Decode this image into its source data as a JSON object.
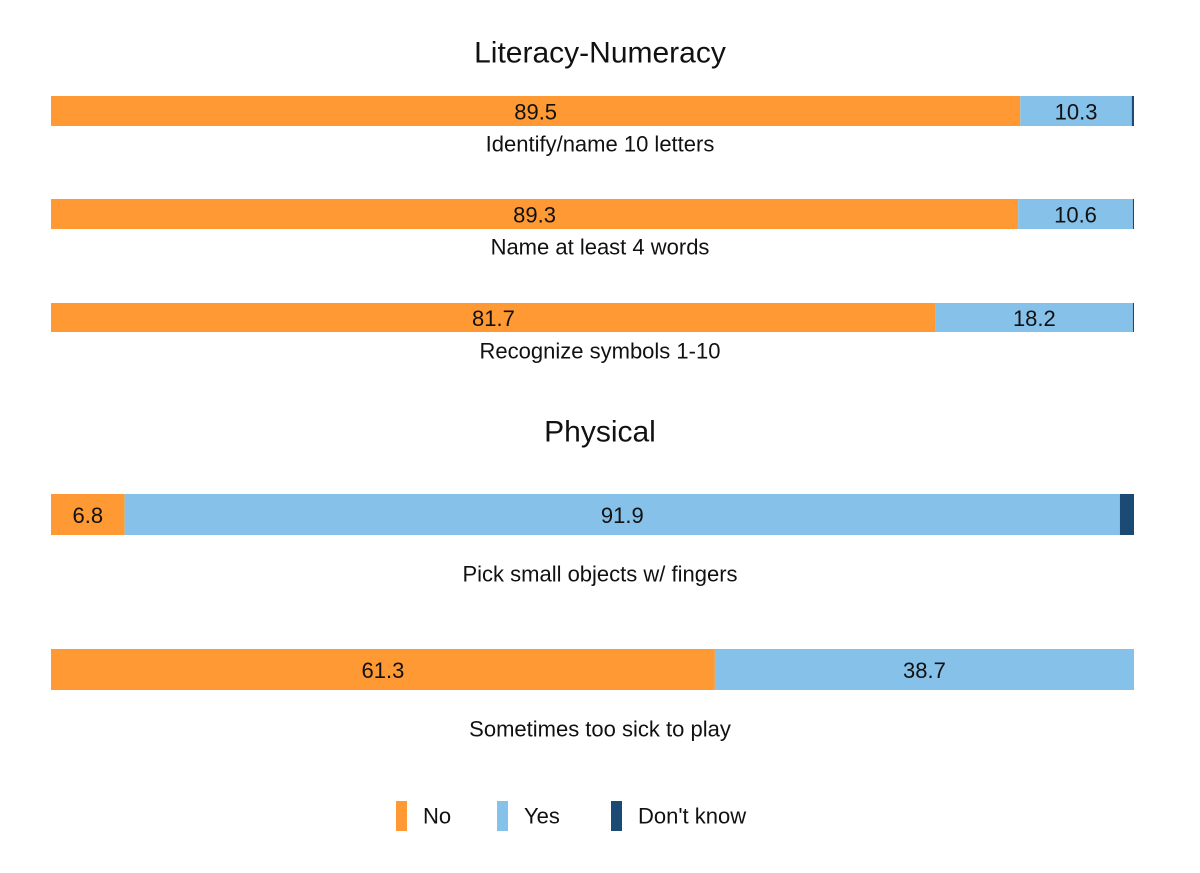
{
  "chart_data": {
    "type": "bar",
    "orientation": "horizontal",
    "stacked": true,
    "xlim": [
      0,
      100
    ],
    "legend_position": "bottom",
    "grid": false,
    "series": [
      {
        "name": "No",
        "color": "#FF9933"
      },
      {
        "name": "Yes",
        "color": "#85C1E9"
      },
      {
        "name": "Don't know",
        "color": "#1B4A75"
      }
    ],
    "sections": [
      {
        "title": "Literacy-Numeracy",
        "items": [
          {
            "label": "Identify/name 10 letters",
            "values": [
              89.5,
              10.3,
              0.2
            ],
            "value_labels": [
              "89.5",
              "10.3",
              ""
            ]
          },
          {
            "label": "Name at least 4 words",
            "values": [
              89.3,
              10.6,
              0.1
            ],
            "value_labels": [
              "89.3",
              "10.6",
              ""
            ]
          },
          {
            "label": "Recognize symbols 1-10",
            "values": [
              81.7,
              18.2,
              0.1
            ],
            "value_labels": [
              "81.7",
              "18.2",
              ""
            ]
          }
        ]
      },
      {
        "title": "Physical",
        "items": [
          {
            "label": "Pick small objects w/ fingers",
            "values": [
              6.8,
              91.9,
              1.3
            ],
            "value_labels": [
              "6.8",
              "91.9",
              ""
            ]
          },
          {
            "label": "Sometimes too sick to play",
            "values": [
              61.3,
              38.7,
              0
            ],
            "value_labels": [
              "61.3",
              "38.7",
              ""
            ]
          }
        ]
      }
    ]
  }
}
